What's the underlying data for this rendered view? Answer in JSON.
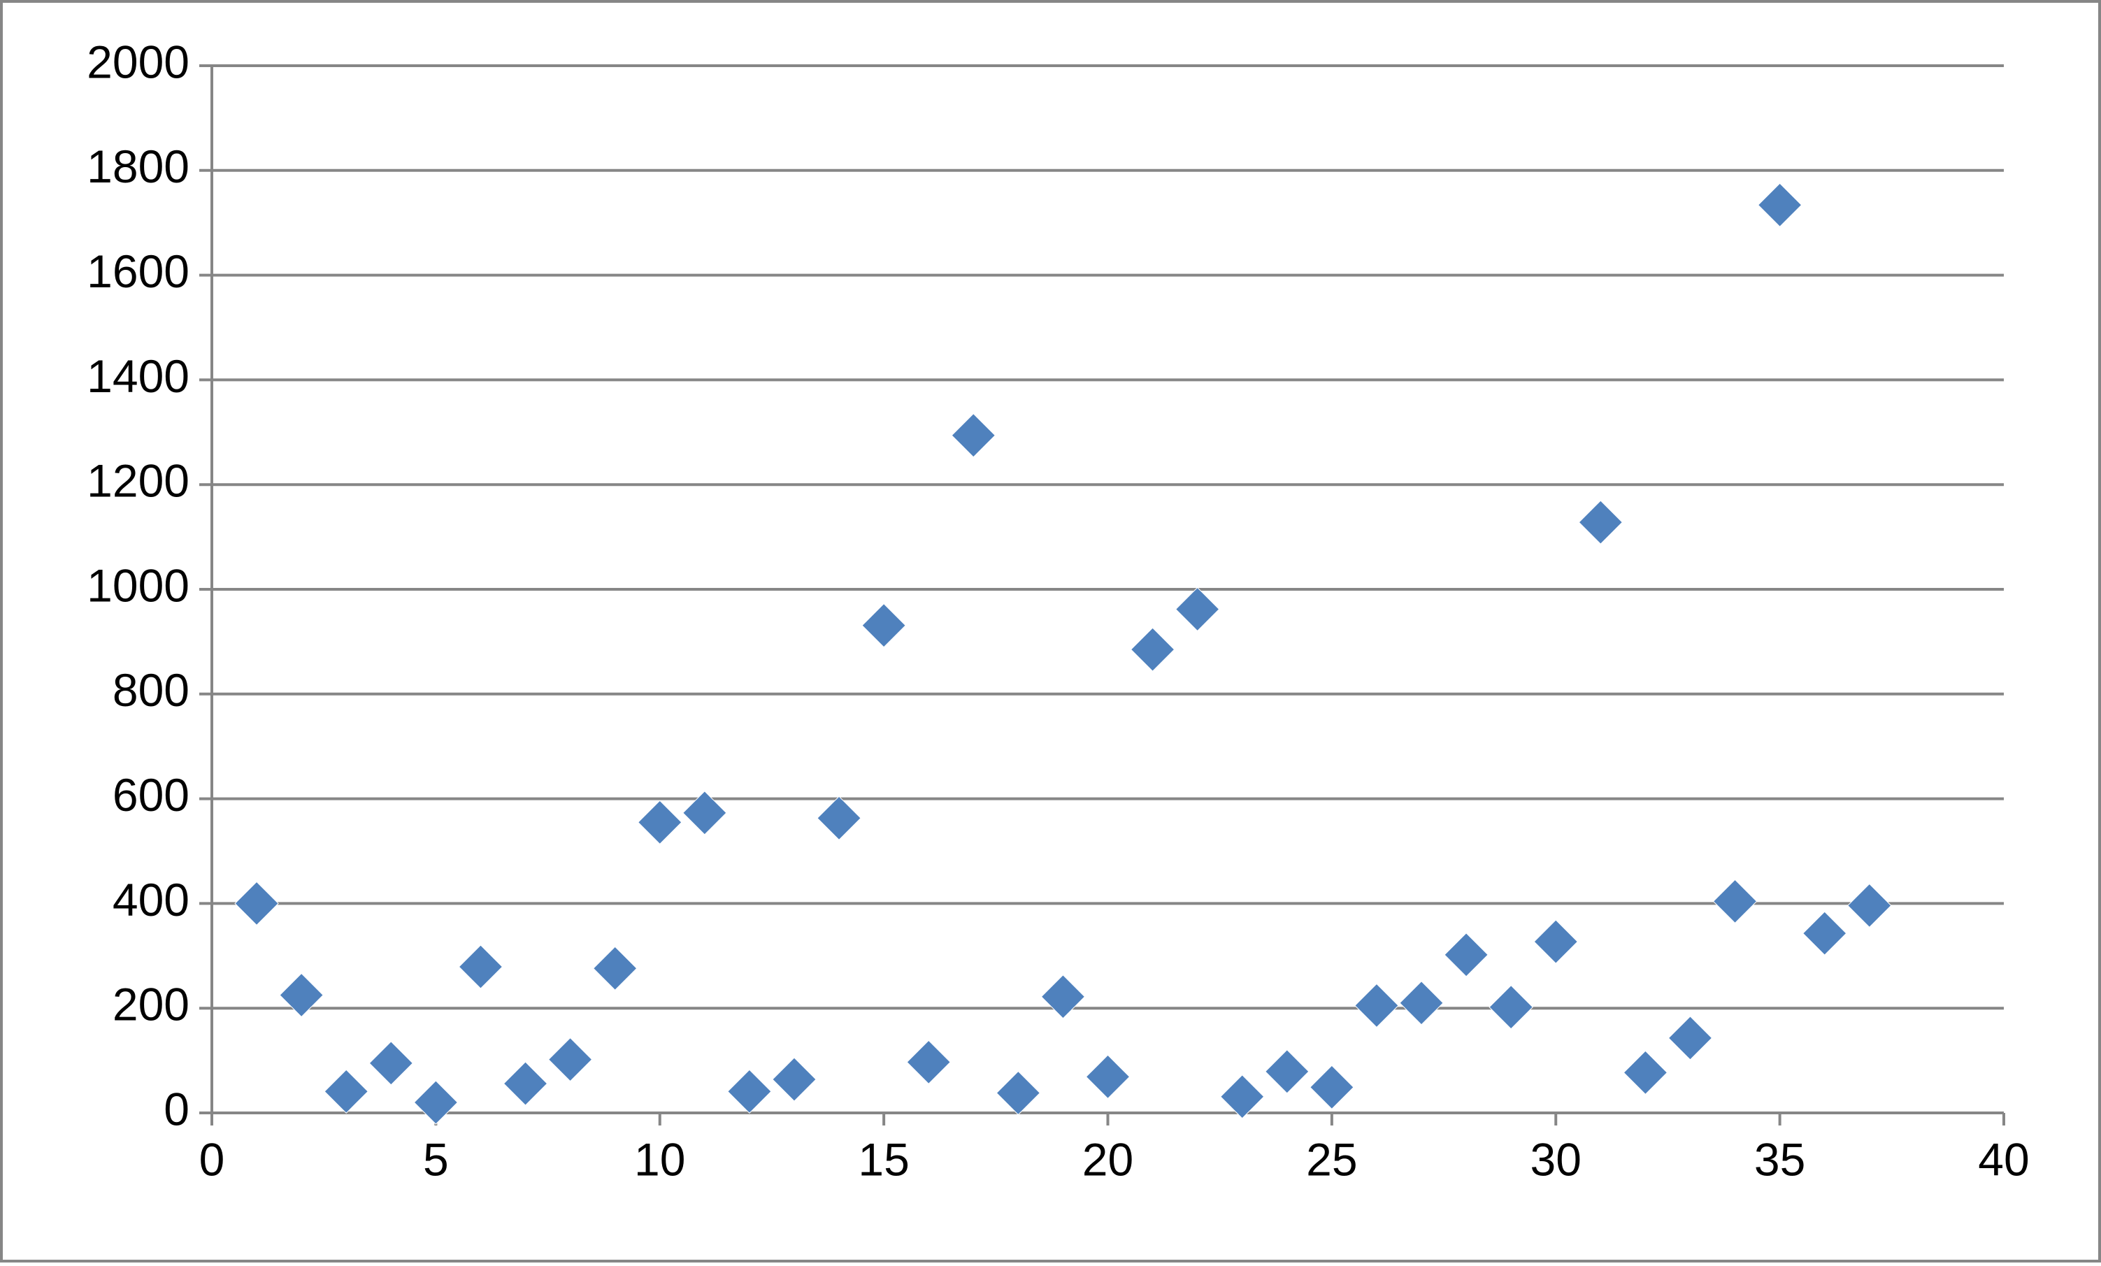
{
  "chart_data": {
    "type": "scatter",
    "x": [
      1,
      2,
      3,
      4,
      5,
      6,
      7,
      8,
      9,
      10,
      11,
      12,
      13,
      14,
      15,
      16,
      17,
      18,
      19,
      20,
      21,
      22,
      23,
      24,
      25,
      26,
      27,
      28,
      29,
      30,
      31,
      32,
      33,
      34,
      35,
      36,
      37
    ],
    "values": [
      400,
      225,
      41,
      95,
      20,
      279,
      56,
      102,
      276,
      555,
      573,
      41,
      64,
      563,
      931,
      97,
      1294,
      38,
      222,
      69,
      885,
      962,
      31,
      79,
      49,
      205,
      210,
      302,
      202,
      327,
      1128,
      77,
      143,
      404,
      1734,
      343,
      396
    ],
    "color": "#4f81bd",
    "xlim": [
      0,
      40
    ],
    "xticks": [
      0,
      5,
      10,
      15,
      20,
      25,
      30,
      35,
      40
    ],
    "ylim": [
      0,
      2000
    ],
    "yticks": [
      0,
      200,
      400,
      600,
      800,
      1000,
      1200,
      1400,
      1600,
      1800,
      2000
    ],
    "grid": true
  }
}
